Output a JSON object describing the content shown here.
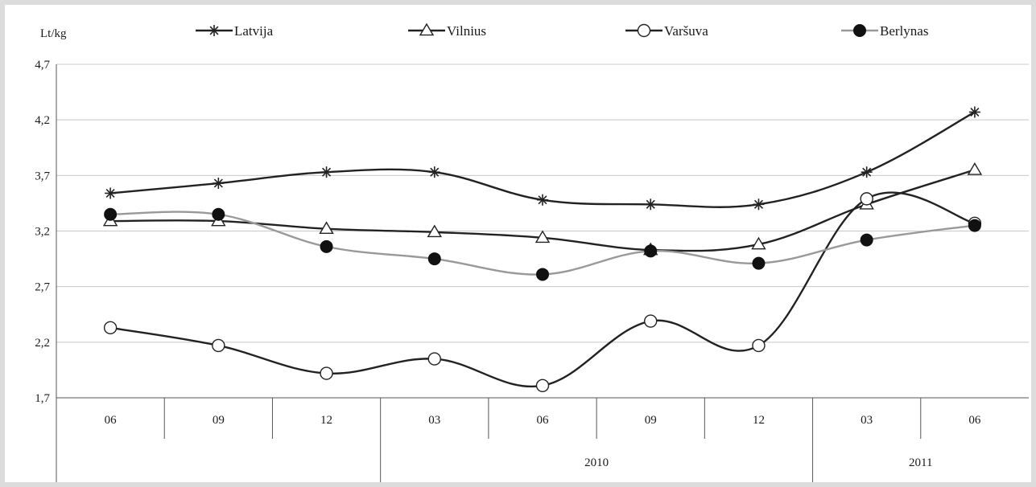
{
  "chart_data": {
    "type": "line",
    "ylabel": "Lt/kg",
    "ylim": [
      1.7,
      4.7
    ],
    "yticks": [
      "1,7",
      "2,2",
      "2,7",
      "3,2",
      "3,7",
      "4,2",
      "4,7"
    ],
    "ytick_values": [
      1.7,
      2.2,
      2.7,
      3.2,
      3.7,
      4.2,
      4.7
    ],
    "categories": [
      "06",
      "09",
      "12",
      "03",
      "06",
      "09",
      "12",
      "03",
      "06"
    ],
    "year_groups": [
      {
        "label": "",
        "start": 0,
        "end": 2
      },
      {
        "label": "2010",
        "start": 3,
        "end": 6
      },
      {
        "label": "2011",
        "start": 7,
        "end": 8
      }
    ],
    "grid": "horizontal",
    "legend_position": "top",
    "series": [
      {
        "name": "Latvija",
        "marker": "asterisk",
        "color": "#222222",
        "values": [
          3.54,
          3.63,
          3.73,
          3.73,
          3.48,
          3.44,
          3.44,
          3.73,
          4.27
        ]
      },
      {
        "name": "Vilnius",
        "marker": "triangle",
        "color": "#222222",
        "values": [
          3.29,
          3.29,
          3.22,
          3.19,
          3.14,
          3.03,
          3.08,
          3.44,
          3.75
        ]
      },
      {
        "name": "Varšuva",
        "marker": "open-circle",
        "color": "#222222",
        "values": [
          2.33,
          2.17,
          1.92,
          2.05,
          1.81,
          2.39,
          2.17,
          3.49,
          3.27
        ]
      },
      {
        "name": "Berlynas",
        "marker": "filled-circle",
        "color": "#999999",
        "values": [
          3.35,
          3.35,
          3.06,
          2.95,
          2.81,
          3.02,
          2.91,
          3.12,
          3.25
        ]
      }
    ]
  }
}
